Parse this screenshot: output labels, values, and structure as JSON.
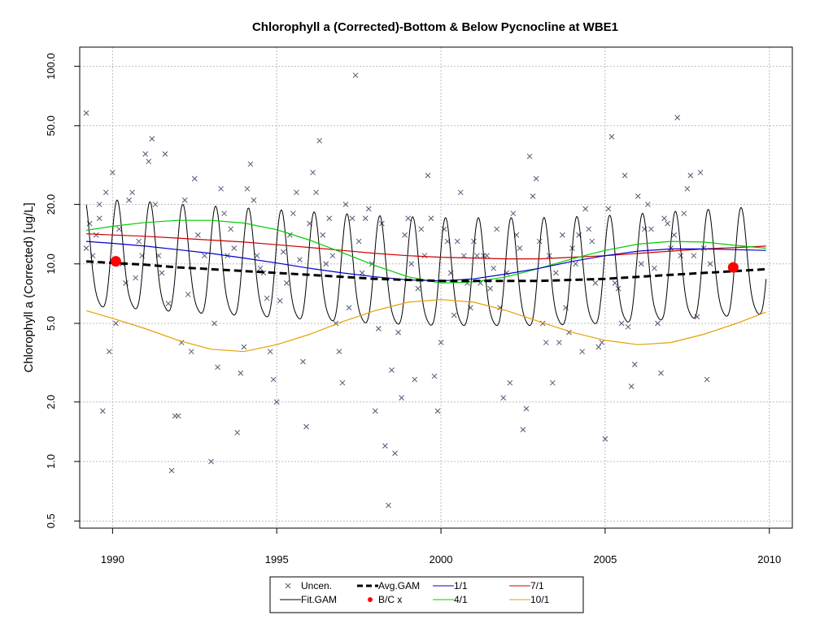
{
  "chart_data": {
    "type": "line",
    "title": "Chlorophyll a (Corrected)-Bottom & Below Pycnocline at WBE1",
    "xlabel": "",
    "ylabel": "Chlorophyll a (Corrected) [ug/L]",
    "y_scale": "log",
    "xlim": [
      1989.0,
      2010.7
    ],
    "ylim": [
      0.46,
      125
    ],
    "x_ticks": [
      1990,
      1995,
      2000,
      2005,
      2010
    ],
    "x_tick_labels": [
      "1990",
      "1995",
      "2000",
      "2005",
      "2010"
    ],
    "y_ticks": [
      0.5,
      1.0,
      2.0,
      5.0,
      10.0,
      20.0,
      50.0,
      100.0
    ],
    "y_tick_labels": [
      "0.5",
      "1.0",
      "2.0",
      "5.0",
      "10.0",
      "20.0",
      "50.0",
      "100.0"
    ],
    "grid": true,
    "legend_position": "bottom",
    "colors": {
      "uncen": "#555577",
      "fit_gam": "#000000",
      "avg_gam": "#000000",
      "bc": "#ff0000",
      "jan1": "#0000cc",
      "apr1": "#00cc00",
      "jul1": "#cc0000",
      "oct1": "#e69f00"
    },
    "legend": [
      {
        "key": "uncen",
        "label": "Uncen."
      },
      {
        "key": "avg_gam",
        "label": "Avg.GAM"
      },
      {
        "key": "jan1",
        "label": "1/1"
      },
      {
        "key": "jul1",
        "label": "7/1"
      },
      {
        "key": "fit_gam",
        "label": "Fit.GAM"
      },
      {
        "key": "bc",
        "label": "B/C x"
      },
      {
        "key": "apr1",
        "label": "4/1"
      },
      {
        "key": "oct1",
        "label": "10/1"
      }
    ],
    "series": [
      {
        "name": "Uncen.",
        "kind": "scatter",
        "points": [
          [
            1989.2,
            58
          ],
          [
            1989.2,
            12
          ],
          [
            1989.3,
            16
          ],
          [
            1989.4,
            11
          ],
          [
            1989.5,
            14
          ],
          [
            1989.6,
            20
          ],
          [
            1989.6,
            17
          ],
          [
            1989.7,
            1.8
          ],
          [
            1989.8,
            23
          ],
          [
            1989.9,
            3.6
          ],
          [
            1990.0,
            29
          ],
          [
            1990.1,
            5
          ],
          [
            1990.2,
            15
          ],
          [
            1990.3,
            10
          ],
          [
            1990.4,
            8
          ],
          [
            1990.5,
            21
          ],
          [
            1990.6,
            23
          ],
          [
            1990.7,
            8.5
          ],
          [
            1990.8,
            13
          ],
          [
            1990.9,
            11
          ],
          [
            1991.0,
            36
          ],
          [
            1991.1,
            33
          ],
          [
            1991.2,
            43
          ],
          [
            1991.3,
            20
          ],
          [
            1991.4,
            11
          ],
          [
            1991.5,
            9
          ],
          [
            1991.6,
            36
          ],
          [
            1991.7,
            6.3
          ],
          [
            1991.8,
            0.9
          ],
          [
            1991.9,
            1.7
          ],
          [
            1992.0,
            1.7
          ],
          [
            1992.1,
            4
          ],
          [
            1992.2,
            21
          ],
          [
            1992.3,
            7
          ],
          [
            1992.4,
            3.6
          ],
          [
            1992.5,
            27
          ],
          [
            1992.6,
            14
          ],
          [
            1992.8,
            11
          ],
          [
            1993.0,
            1.0
          ],
          [
            1993.1,
            5
          ],
          [
            1993.2,
            3
          ],
          [
            1993.3,
            24
          ],
          [
            1993.4,
            18
          ],
          [
            1993.5,
            11
          ],
          [
            1993.6,
            15
          ],
          [
            1993.7,
            12
          ],
          [
            1993.8,
            1.4
          ],
          [
            1993.9,
            2.8
          ],
          [
            1994.0,
            3.8
          ],
          [
            1994.1,
            24
          ],
          [
            1994.2,
            32
          ],
          [
            1994.3,
            21
          ],
          [
            1994.4,
            11
          ],
          [
            1994.5,
            9.5
          ],
          [
            1994.6,
            9
          ],
          [
            1994.7,
            6.7
          ],
          [
            1994.8,
            3.6
          ],
          [
            1994.9,
            2.6
          ],
          [
            1995.0,
            2.0
          ],
          [
            1995.1,
            6.5
          ],
          [
            1995.2,
            11.5
          ],
          [
            1995.3,
            8
          ],
          [
            1995.4,
            14
          ],
          [
            1995.5,
            18
          ],
          [
            1995.6,
            23
          ],
          [
            1995.7,
            10.5
          ],
          [
            1995.8,
            3.2
          ],
          [
            1995.9,
            1.5
          ],
          [
            1996.0,
            16
          ],
          [
            1996.1,
            29
          ],
          [
            1996.2,
            23
          ],
          [
            1996.3,
            42
          ],
          [
            1996.4,
            14
          ],
          [
            1996.5,
            10
          ],
          [
            1996.6,
            17
          ],
          [
            1996.7,
            11
          ],
          [
            1996.8,
            5
          ],
          [
            1996.9,
            3.6
          ],
          [
            1997.0,
            2.5
          ],
          [
            1997.1,
            20
          ],
          [
            1997.2,
            6
          ],
          [
            1997.3,
            17
          ],
          [
            1997.4,
            90
          ],
          [
            1997.5,
            13
          ],
          [
            1997.6,
            9
          ],
          [
            1997.7,
            17
          ],
          [
            1997.8,
            19
          ],
          [
            1997.9,
            10
          ],
          [
            1998.0,
            1.8
          ],
          [
            1998.1,
            4.7
          ],
          [
            1998.2,
            16
          ],
          [
            1998.3,
            1.2
          ],
          [
            1998.4,
            0.6
          ],
          [
            1998.5,
            2.9
          ],
          [
            1998.6,
            1.1
          ],
          [
            1998.7,
            4.5
          ],
          [
            1998.8,
            2.1
          ],
          [
            1998.9,
            14
          ],
          [
            1999.0,
            17
          ],
          [
            1999.1,
            10
          ],
          [
            1999.2,
            2.6
          ],
          [
            1999.3,
            7.5
          ],
          [
            1999.4,
            15
          ],
          [
            1999.5,
            11
          ],
          [
            1999.6,
            28
          ],
          [
            1999.7,
            17
          ],
          [
            1999.8,
            2.7
          ],
          [
            1999.9,
            1.8
          ],
          [
            2000.0,
            4
          ],
          [
            2000.1,
            15
          ],
          [
            2000.2,
            13
          ],
          [
            2000.3,
            9
          ],
          [
            2000.4,
            5.5
          ],
          [
            2000.5,
            13
          ],
          [
            2000.6,
            23
          ],
          [
            2000.7,
            11
          ],
          [
            2000.8,
            8
          ],
          [
            2000.9,
            6
          ],
          [
            2001.0,
            13
          ],
          [
            2001.1,
            11
          ],
          [
            2001.2,
            8
          ],
          [
            2001.3,
            11
          ],
          [
            2001.4,
            11
          ],
          [
            2001.5,
            7.5
          ],
          [
            2001.6,
            9.5
          ],
          [
            2001.7,
            15
          ],
          [
            2001.8,
            6
          ],
          [
            2001.9,
            2.1
          ],
          [
            2002.0,
            9
          ],
          [
            2002.1,
            2.5
          ],
          [
            2002.2,
            18
          ],
          [
            2002.3,
            14
          ],
          [
            2002.4,
            12
          ],
          [
            2002.5,
            1.45
          ],
          [
            2002.6,
            1.85
          ],
          [
            2002.7,
            35
          ],
          [
            2002.8,
            22
          ],
          [
            2002.9,
            27
          ],
          [
            2003.0,
            13
          ],
          [
            2003.1,
            5
          ],
          [
            2003.2,
            4
          ],
          [
            2003.3,
            11
          ],
          [
            2003.4,
            2.5
          ],
          [
            2003.5,
            9
          ],
          [
            2003.6,
            4
          ],
          [
            2003.7,
            14
          ],
          [
            2003.8,
            6
          ],
          [
            2003.9,
            4.5
          ],
          [
            2004.0,
            12
          ],
          [
            2004.1,
            10
          ],
          [
            2004.2,
            14
          ],
          [
            2004.3,
            3.6
          ],
          [
            2004.4,
            19
          ],
          [
            2004.5,
            15
          ],
          [
            2004.6,
            13
          ],
          [
            2004.7,
            8
          ],
          [
            2004.8,
            3.8
          ],
          [
            2004.9,
            4
          ],
          [
            2005.0,
            1.3
          ],
          [
            2005.1,
            19
          ],
          [
            2005.2,
            44
          ],
          [
            2005.3,
            8
          ],
          [
            2005.4,
            7.5
          ],
          [
            2005.5,
            5
          ],
          [
            2005.6,
            28
          ],
          [
            2005.7,
            4.8
          ],
          [
            2005.8,
            2.4
          ],
          [
            2005.9,
            3.1
          ],
          [
            2006.0,
            22
          ],
          [
            2006.1,
            10
          ],
          [
            2006.2,
            15
          ],
          [
            2006.3,
            20
          ],
          [
            2006.4,
            15
          ],
          [
            2006.5,
            9.5
          ],
          [
            2006.6,
            5
          ],
          [
            2006.7,
            2.8
          ],
          [
            2006.8,
            17
          ],
          [
            2006.9,
            16
          ],
          [
            2007.0,
            12
          ],
          [
            2007.1,
            14
          ],
          [
            2007.2,
            55
          ],
          [
            2007.3,
            11
          ],
          [
            2007.4,
            18
          ],
          [
            2007.5,
            24
          ],
          [
            2007.6,
            28
          ],
          [
            2007.7,
            11
          ],
          [
            2007.8,
            5.4
          ],
          [
            2007.9,
            29
          ],
          [
            2008.0,
            12
          ],
          [
            2008.1,
            2.6
          ],
          [
            2008.2,
            10
          ]
        ]
      },
      {
        "name": "Fit.GAM",
        "kind": "line"
      },
      {
        "name": "Avg.GAM",
        "kind": "line",
        "x": [
          1989.2,
          1990,
          1991,
          1992,
          1993,
          1994,
          1995,
          1996,
          1997,
          1998,
          1999,
          2000,
          2001,
          2002,
          2003,
          2004,
          2005,
          2006,
          2007,
          2008,
          2009,
          2009.9
        ],
        "values": [
          10.3,
          10.1,
          9.9,
          9.6,
          9.4,
          9.2,
          9.0,
          8.8,
          8.6,
          8.4,
          8.3,
          8.2,
          8.2,
          8.2,
          8.2,
          8.3,
          8.4,
          8.6,
          8.8,
          9.0,
          9.2,
          9.4
        ]
      },
      {
        "name": "B/C x",
        "kind": "scatter",
        "points": [
          [
            1990.1,
            10.3
          ],
          [
            2008.9,
            9.6
          ]
        ]
      },
      {
        "name": "1/1",
        "kind": "line",
        "x": [
          1989.2,
          1990,
          1991,
          1992,
          1993,
          1994,
          1995,
          1996,
          1997,
          1998,
          1999,
          2000,
          2001,
          2002,
          2003,
          2004,
          2005,
          2006,
          2007,
          2008,
          2009,
          2009.9
        ],
        "values": [
          13.0,
          12.7,
          12.3,
          11.8,
          11.3,
          10.7,
          10.1,
          9.5,
          9.0,
          8.6,
          8.3,
          8.2,
          8.4,
          8.9,
          9.5,
          10.3,
          11.0,
          11.6,
          11.9,
          11.9,
          11.8,
          11.7
        ]
      },
      {
        "name": "4/1",
        "kind": "line",
        "x": [
          1989.2,
          1990,
          1991,
          1992,
          1993,
          1994,
          1995,
          1996,
          1997,
          1998,
          1999,
          2000,
          2001,
          2002,
          2003,
          2004,
          2005,
          2006,
          2007,
          2008,
          2009,
          2009.9
        ],
        "values": [
          14.8,
          15.5,
          16.2,
          16.6,
          16.6,
          16.1,
          14.9,
          13.2,
          11.4,
          9.8,
          8.6,
          8.0,
          8.1,
          8.6,
          9.5,
          10.6,
          11.7,
          12.6,
          13.0,
          12.9,
          12.4,
          12.0
        ]
      },
      {
        "name": "7/1",
        "kind": "line",
        "x": [
          1989.2,
          1990,
          1991,
          1992,
          1993,
          1994,
          1995,
          1996,
          1997,
          1998,
          1999,
          2000,
          2001,
          2002,
          2003,
          2004,
          2005,
          2006,
          2007,
          2008,
          2009,
          2009.9
        ],
        "values": [
          14.2,
          14.0,
          13.8,
          13.5,
          13.2,
          12.9,
          12.5,
          12.1,
          11.7,
          11.3,
          11.0,
          10.8,
          10.7,
          10.6,
          10.6,
          10.8,
          11.0,
          11.3,
          11.6,
          11.9,
          12.1,
          12.3
        ]
      },
      {
        "name": "10/1",
        "kind": "line",
        "x": [
          1989.2,
          1990,
          1991,
          1992,
          1993,
          1994,
          1995,
          1996,
          1997,
          1998,
          1999,
          2000,
          2001,
          2002,
          2003,
          2004,
          2005,
          2006,
          2007,
          2008,
          2009,
          2009.9
        ],
        "values": [
          5.8,
          5.3,
          4.7,
          4.1,
          3.7,
          3.6,
          3.9,
          4.4,
          5.1,
          5.8,
          6.4,
          6.6,
          6.4,
          5.8,
          5.1,
          4.5,
          4.1,
          3.9,
          4.0,
          4.4,
          5.0,
          5.7
        ]
      }
    ]
  }
}
